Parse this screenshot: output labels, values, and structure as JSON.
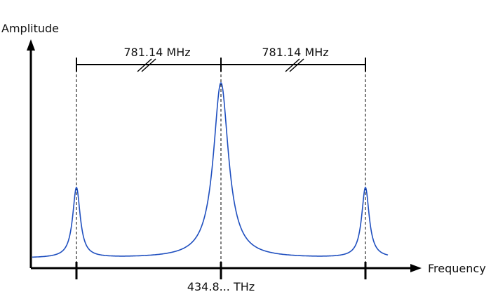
{
  "axes": {
    "y_label": "Amplitude",
    "x_label": "Frequency"
  },
  "center_frequency_label": "434.8... THz",
  "spacing": {
    "left_label": "781.14 MHz",
    "right_label": "781.14 MHz"
  },
  "peaks": [
    {
      "relative_frequency_mhz": -781.14,
      "relative_amplitude": 0.4
    },
    {
      "relative_frequency_mhz": 0,
      "relative_amplitude": 1.0
    },
    {
      "relative_frequency_mhz": 781.14,
      "relative_amplitude": 0.4
    }
  ],
  "colors": {
    "spectrum": "#1f4fbf",
    "axis": "#000000"
  }
}
